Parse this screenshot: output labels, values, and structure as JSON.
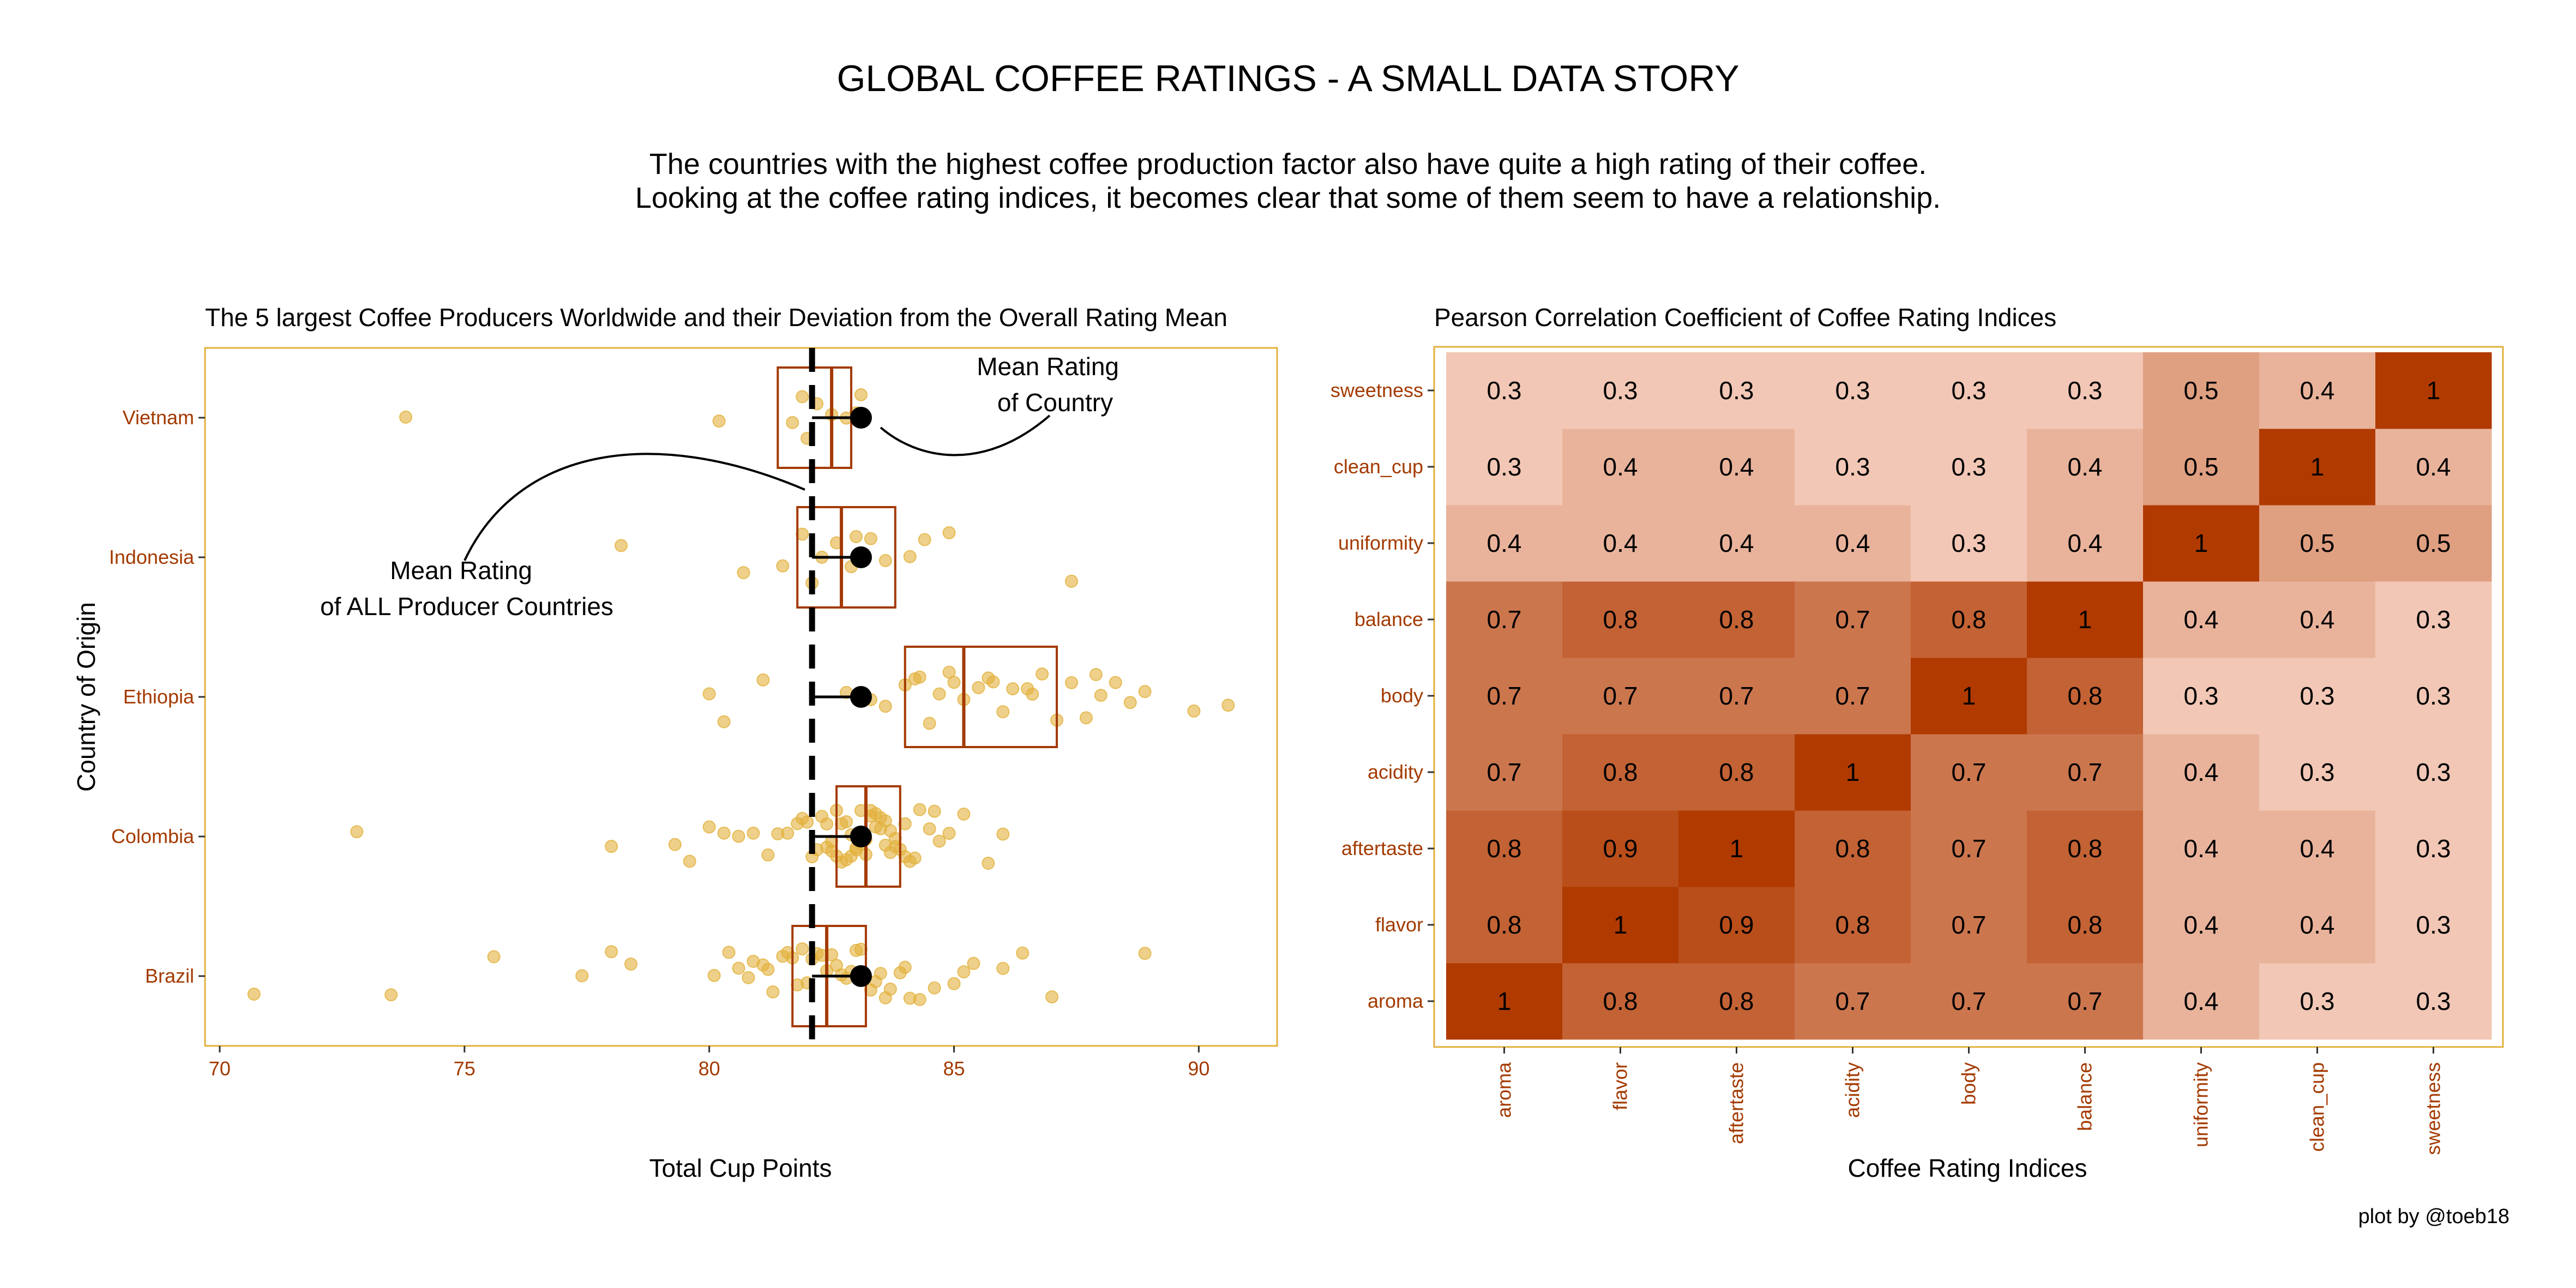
{
  "title": "GLOBAL COFFEE RATINGS - A SMALL DATA STORY",
  "subtitle_lines": [
    "The countries with the highest coffee production factor also have quite a high rating of their coffee.",
    "Looking at the coffee rating indices, it becomes clear that some of them seem to have a relationship."
  ],
  "credit": "plot by @toeb18",
  "colors": {
    "accent": "#A33A00",
    "points": "#E2B13C",
    "panel_border": "#E2B13C",
    "heat_low": "#F2C7B5",
    "heat_high": "#B03A00"
  },
  "chart_data": [
    {
      "type": "box",
      "title": "The 5 largest Coffee Producers Worldwide and their Deviation from the Overall Rating Mean",
      "xlabel": "Total Cup Points",
      "ylabel": "Country of Origin",
      "xlim": [
        69.7,
        91.6
      ],
      "xticks": [
        70,
        75,
        80,
        85,
        90
      ],
      "overall_mean": 82.1,
      "grid": false,
      "annotations": [
        {
          "text": [
            "Mean Rating",
            "of Country"
          ]
        },
        {
          "text": [
            "Mean Rating",
            "of ALL Producer Countries"
          ]
        }
      ],
      "categories": [
        "Vietnam",
        "Indonesia",
        "Ethiopia",
        "Colombia",
        "Brazil"
      ],
      "series": [
        {
          "category": "Vietnam",
          "q1": 81.4,
          "median": 82.5,
          "q3": 82.9,
          "mean": 83.1,
          "points": [
            73.8,
            80.2,
            81.9,
            82.2,
            82.5,
            82.8,
            83.1,
            82.0,
            81.7,
            83.0
          ]
        },
        {
          "category": "Indonesia",
          "q1": 81.8,
          "median": 82.7,
          "q3": 83.8,
          "mean": 83.1,
          "points": [
            78.2,
            80.7,
            81.5,
            81.9,
            82.3,
            82.6,
            82.9,
            83.3,
            83.6,
            84.1,
            84.4,
            84.9,
            87.4,
            82.1,
            83.0
          ]
        },
        {
          "category": "Ethiopia",
          "q1": 84.0,
          "median": 85.2,
          "q3": 87.1,
          "mean": 83.1,
          "points": [
            80.0,
            80.3,
            81.1,
            82.8,
            83.3,
            83.6,
            84.0,
            84.2,
            84.5,
            84.7,
            85.0,
            85.2,
            85.5,
            85.7,
            86.0,
            86.2,
            86.5,
            86.8,
            87.1,
            87.4,
            87.7,
            88.0,
            88.3,
            88.6,
            88.9,
            89.9,
            90.6,
            84.3,
            85.8,
            86.6,
            87.9,
            84.9
          ]
        },
        {
          "category": "Colombia",
          "q1": 82.6,
          "median": 83.2,
          "q3": 83.9,
          "mean": 83.1,
          "points": [
            72.8,
            78.0,
            79.3,
            79.6,
            80.0,
            80.3,
            80.6,
            80.9,
            81.2,
            81.4,
            81.6,
            81.8,
            82.0,
            82.2,
            82.3,
            82.4,
            82.5,
            82.6,
            82.7,
            82.8,
            82.9,
            83.0,
            83.1,
            83.2,
            83.3,
            83.4,
            83.5,
            83.6,
            83.7,
            83.8,
            83.9,
            84.0,
            84.1,
            84.3,
            84.5,
            84.7,
            84.9,
            85.2,
            85.7,
            86.0,
            82.1,
            82.5,
            82.9,
            83.3,
            83.7,
            84.2,
            82.7,
            83.1,
            83.5,
            83.0,
            82.4,
            83.6,
            84.0,
            82.8,
            83.2,
            81.9,
            84.6,
            83.4,
            82.6,
            83.8
          ]
        },
        {
          "category": "Brazil",
          "q1": 81.7,
          "median": 82.4,
          "q3": 83.2,
          "mean": 83.1,
          "points": [
            70.7,
            73.5,
            75.6,
            77.4,
            78.0,
            78.4,
            80.1,
            80.4,
            80.6,
            80.9,
            81.1,
            81.3,
            81.5,
            81.7,
            81.9,
            82.0,
            82.2,
            82.4,
            82.5,
            82.7,
            82.9,
            83.1,
            83.3,
            83.5,
            83.7,
            84.0,
            84.3,
            84.6,
            85.0,
            85.4,
            86.0,
            86.4,
            87.0,
            88.9,
            81.6,
            82.1,
            82.6,
            83.0,
            83.4,
            83.9,
            81.2,
            82.8,
            84.1,
            80.8,
            85.2,
            82.3,
            83.6,
            81.8
          ]
        }
      ]
    },
    {
      "type": "heatmap",
      "title": "Pearson Correlation Coefficient of  Coffee Rating Indices",
      "xlabel": "Coffee Rating Indices",
      "ylabel": "",
      "x": [
        "aroma",
        "flavor",
        "aftertaste",
        "acidity",
        "body",
        "balance",
        "uniformity",
        "clean_cup",
        "sweetness"
      ],
      "y": [
        "aroma",
        "flavor",
        "aftertaste",
        "acidity",
        "body",
        "balance",
        "uniformity",
        "clean_cup",
        "sweetness"
      ],
      "values": [
        [
          1,
          0.8,
          0.8,
          0.7,
          0.7,
          0.7,
          0.4,
          0.3,
          0.3
        ],
        [
          0.8,
          1,
          0.9,
          0.8,
          0.7,
          0.8,
          0.4,
          0.4,
          0.3
        ],
        [
          0.8,
          0.9,
          1,
          0.8,
          0.7,
          0.8,
          0.4,
          0.4,
          0.3
        ],
        [
          0.7,
          0.8,
          0.8,
          1,
          0.7,
          0.7,
          0.4,
          0.3,
          0.3
        ],
        [
          0.7,
          0.7,
          0.7,
          0.7,
          1,
          0.8,
          0.3,
          0.3,
          0.3
        ],
        [
          0.7,
          0.8,
          0.8,
          0.7,
          0.8,
          1,
          0.4,
          0.4,
          0.3
        ],
        [
          0.4,
          0.4,
          0.4,
          0.4,
          0.3,
          0.4,
          1,
          0.5,
          0.5
        ],
        [
          0.3,
          0.4,
          0.4,
          0.3,
          0.3,
          0.4,
          0.5,
          1,
          0.4
        ],
        [
          0.3,
          0.3,
          0.3,
          0.3,
          0.3,
          0.3,
          0.5,
          0.4,
          1
        ]
      ],
      "scale_min": 0.3,
      "scale_max": 1.0
    }
  ]
}
